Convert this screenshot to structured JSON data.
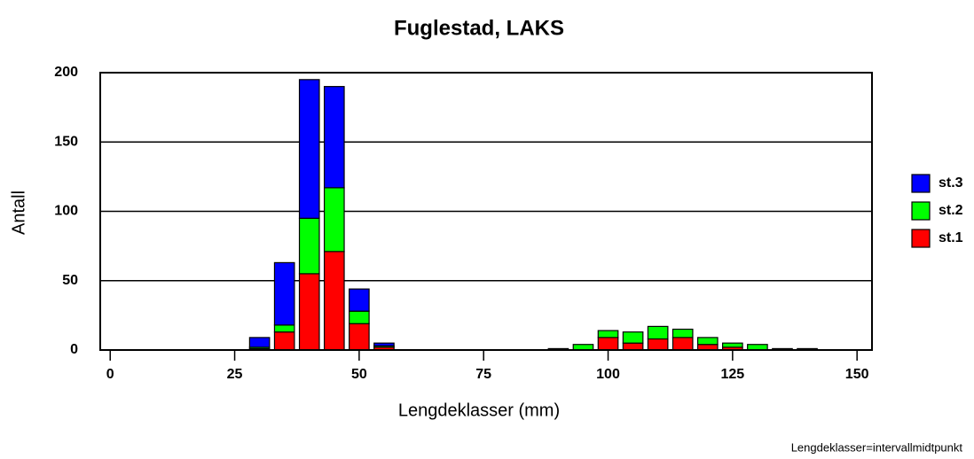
{
  "chart_data": {
    "type": "bar",
    "stacked": true,
    "title": "Fuglestad, LAKS",
    "x_label": "Lengdeklasser (mm)",
    "y_label": "Antall",
    "note": "Lengdeklasser=intervallmidtpunkt",
    "x": [
      30,
      35,
      40,
      45,
      50,
      55,
      90,
      95,
      100,
      105,
      110,
      115,
      120,
      125,
      130,
      135,
      140
    ],
    "series": [
      {
        "name": "st.1",
        "color": "#ff0000",
        "values": [
          1,
          13,
          55,
          71,
          19,
          2,
          1,
          0,
          9,
          5,
          8,
          9,
          4,
          2,
          0,
          1,
          1
        ]
      },
      {
        "name": "st.2",
        "color": "#00ff00",
        "values": [
          1,
          5,
          40,
          46,
          9,
          1,
          0,
          4,
          5,
          8,
          9,
          6,
          5,
          3,
          4,
          0,
          0
        ]
      },
      {
        "name": "st.3",
        "color": "#0000ff",
        "values": [
          7,
          45,
          100,
          73,
          16,
          2,
          0,
          0,
          0,
          0,
          0,
          0,
          0,
          0,
          0,
          0,
          0
        ]
      }
    ],
    "xlim": [
      -2,
      153
    ],
    "xticks": [
      0,
      25,
      50,
      75,
      100,
      125,
      150
    ],
    "ylim": [
      0,
      200
    ],
    "yticks": [
      0,
      50,
      100,
      150,
      200
    ],
    "grid": true,
    "legend": "right"
  }
}
